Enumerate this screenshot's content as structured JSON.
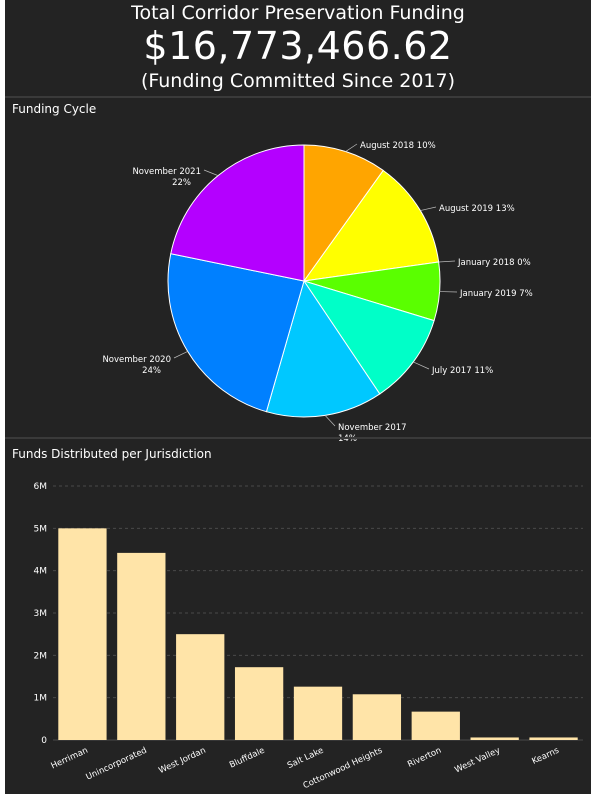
{
  "header": {
    "title": "Total Corridor Preservation Funding",
    "amount": "$16,773,466.62",
    "subtitle": "(Funding Committed Since 2017)"
  },
  "colors": {
    "background": "#232323",
    "bar": "#ffe4a8",
    "grid": "#4a4a4a"
  },
  "chart_data": [
    {
      "type": "pie",
      "title": "Funding Cycle",
      "slices": [
        {
          "label": "August 2018",
          "percent_label": "10%",
          "value": 10,
          "color": "#ffa500"
        },
        {
          "label": "August 2019",
          "percent_label": "13%",
          "value": 13,
          "color": "#ffff00"
        },
        {
          "label": "January 2018",
          "percent_label": "0%",
          "value": 0.001,
          "color": "#aaff00"
        },
        {
          "label": "January 2019",
          "percent_label": "7%",
          "value": 7,
          "color": "#5aff00"
        },
        {
          "label": "July 2017",
          "percent_label": "11%",
          "value": 11,
          "color": "#00ffc8"
        },
        {
          "label": "November 2017",
          "percent_label": "14%",
          "value": 14,
          "color": "#00c8ff"
        },
        {
          "label": "November 2020",
          "percent_label": "24%",
          "value": 24,
          "color": "#0080ff"
        },
        {
          "label": "November 2021",
          "percent_label": "22%",
          "value": 22,
          "color": "#b400ff"
        }
      ]
    },
    {
      "type": "bar",
      "title": "Funds Distributed per Jurisdiction",
      "categories": [
        "Herriman",
        "Unincorporated",
        "West Jordan",
        "Bluffdale",
        "Salt Lake",
        "Cottonwood Heights",
        "Riverton",
        "West Valley",
        "Kearns"
      ],
      "values": [
        5000000,
        4420000,
        2500000,
        1720000,
        1260000,
        1080000,
        670000,
        60000,
        60000
      ],
      "ylim": [
        0,
        6000000
      ],
      "yticks": [
        {
          "value": 0,
          "label": "0"
        },
        {
          "value": 1000000,
          "label": "1M"
        },
        {
          "value": 2000000,
          "label": "2M"
        },
        {
          "value": 3000000,
          "label": "3M"
        },
        {
          "value": 4000000,
          "label": "4M"
        },
        {
          "value": 5000000,
          "label": "5M"
        },
        {
          "value": 6000000,
          "label": "6M"
        }
      ],
      "grid": true
    }
  ]
}
